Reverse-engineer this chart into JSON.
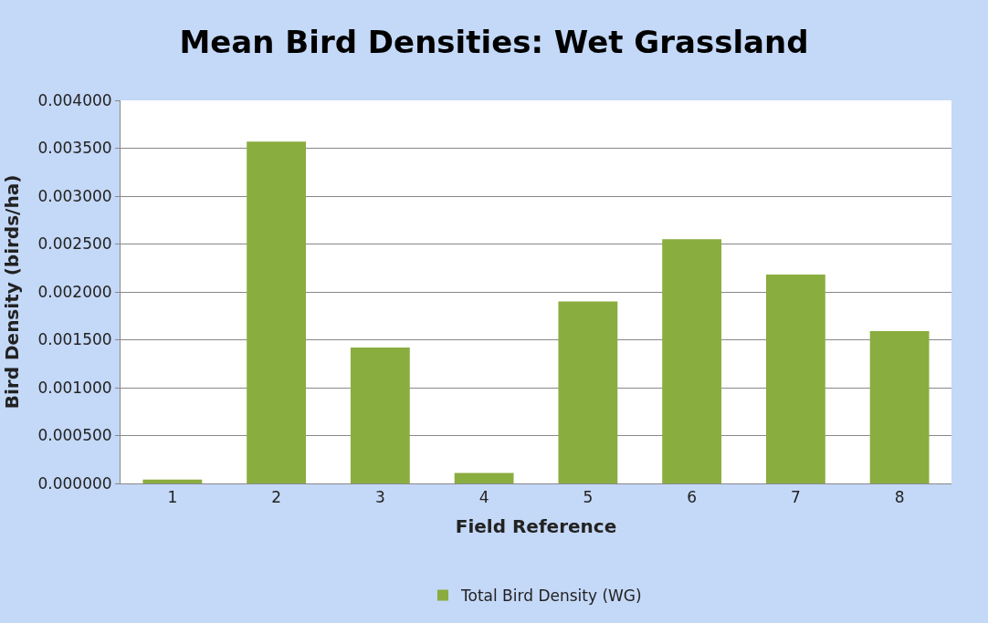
{
  "chart_data": {
    "type": "bar",
    "title": "Mean Bird Densities: Wet Grassland",
    "xlabel": "Field Reference",
    "ylabel": "Bird Density (birds/ha)",
    "categories": [
      "1",
      "2",
      "3",
      "4",
      "5",
      "6",
      "7",
      "8"
    ],
    "series": [
      {
        "name": "Total Bird Density (WG)",
        "color": "#8aad3f",
        "values": [
          4e-05,
          0.00357,
          0.00142,
          0.00011,
          0.0019,
          0.00255,
          0.00218,
          0.00159
        ]
      }
    ],
    "ylim": [
      0,
      0.004
    ],
    "yticks": [
      {
        "value": 0,
        "label": "0.000000"
      },
      {
        "value": 0.0005,
        "label": "0.000500"
      },
      {
        "value": 0.001,
        "label": "0.001000"
      },
      {
        "value": 0.0015,
        "label": "0.001500"
      },
      {
        "value": 0.002,
        "label": "0.002000"
      },
      {
        "value": 0.0025,
        "label": "0.002500"
      },
      {
        "value": 0.003,
        "label": "0.003000"
      },
      {
        "value": 0.0035,
        "label": "0.003500"
      },
      {
        "value": 0.004,
        "label": "0.004000"
      }
    ],
    "grid": "y",
    "legend": "bottom"
  }
}
